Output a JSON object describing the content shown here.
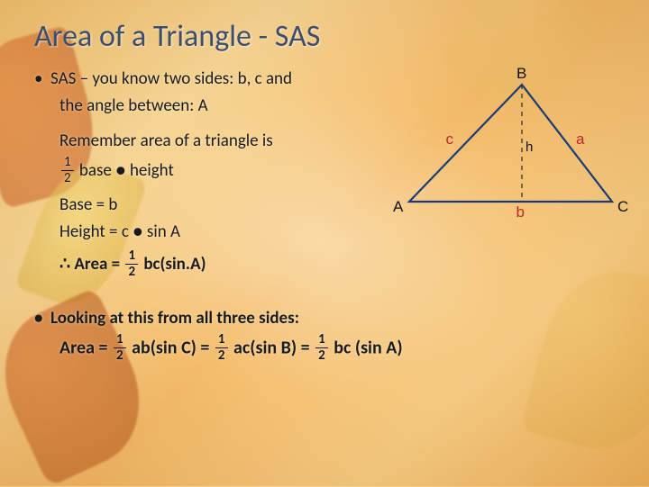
{
  "title": "Area of a Triangle  - SAS",
  "body": {
    "sas_line1": "SAS – you know two sides: b, c and",
    "sas_line2": "the angle between: A",
    "remember": "Remember area of a triangle is",
    "formula_base_height_prefix": "base ● height",
    "base_eq": "Base = b",
    "height_eq": "Height = c ● sin A",
    "area_prefix": "∴  Area = ",
    "area_suffix": " bc(sin.A)",
    "looking": "Looking at this from all three sides:",
    "full_area_label": "Area = ",
    "term1": " ab(sin C) = ",
    "term2": " ac(sin B) = ",
    "term3": " bc (sin A)"
  },
  "fraction": {
    "num": "1",
    "den": "2"
  },
  "diagram": {
    "B": "B",
    "A": "A",
    "C": "C",
    "a": "a",
    "b": "b",
    "c": "c",
    "h": "h",
    "vertices": {
      "A": [
        10,
        140
      ],
      "B": [
        135,
        10
      ],
      "C": [
        235,
        140
      ]
    },
    "foot": [
      135,
      140
    ],
    "stroke": "#1a3a7a",
    "stroke_width": 2.2,
    "dash": "5,5",
    "dash_color": "#333333"
  },
  "colors": {
    "title": "#3d4e6b",
    "side_label": "#c02828"
  }
}
